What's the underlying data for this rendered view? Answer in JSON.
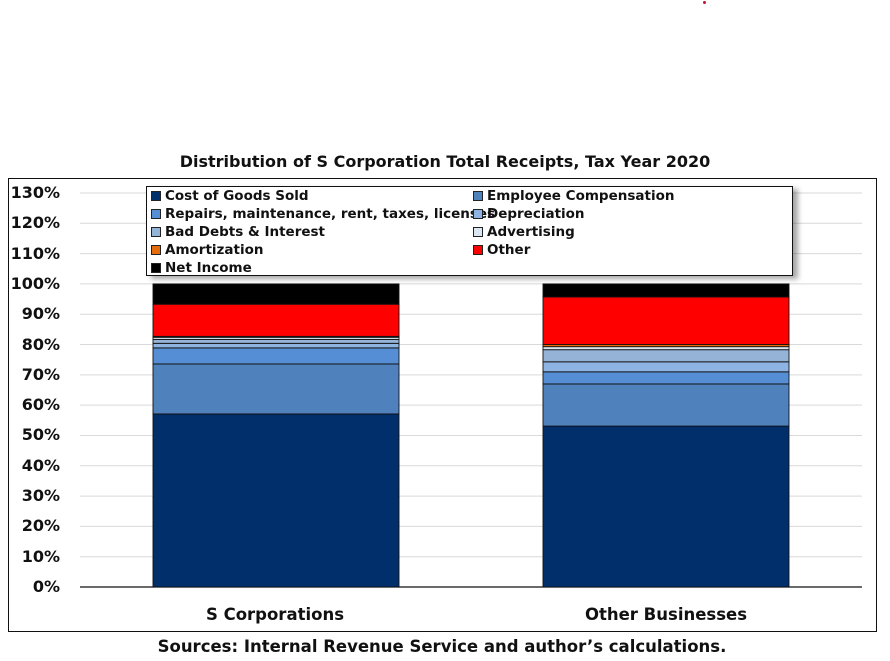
{
  "chart_data": {
    "type": "bar",
    "stacked": true,
    "title": "Distribution of S Corporation Total Receipts, Tax Year 2020",
    "xlabel": "",
    "ylabel": "",
    "ylim": [
      0,
      130
    ],
    "y_ticks": [
      "0%",
      "10%",
      "20%",
      "30%",
      "40%",
      "50%",
      "60%",
      "70%",
      "80%",
      "90%",
      "100%",
      "110%",
      "120%",
      "130%"
    ],
    "y_tick_values": [
      0,
      10,
      20,
      30,
      40,
      50,
      60,
      70,
      80,
      90,
      100,
      110,
      120,
      130
    ],
    "grid": true,
    "legend_position": "top",
    "categories": [
      "S Corporations",
      "Other Businesses"
    ],
    "series": [
      {
        "name": "Cost of Goods Sold",
        "color": "#002f6c",
        "values": [
          57.1,
          53.1
        ]
      },
      {
        "name": "Employee Compensation",
        "color": "#4f81bd",
        "values": [
          16.5,
          13.9
        ]
      },
      {
        "name": "Repairs, maintenance, rent, taxes, licenses",
        "color": "#558ed5",
        "values": [
          5.3,
          4.0
        ]
      },
      {
        "name": "Depreciation",
        "color": "#8db4e2",
        "values": [
          1.5,
          3.3
        ]
      },
      {
        "name": "Bad Debts & Interest",
        "color": "#95b3d7",
        "values": [
          1.3,
          4.0
        ]
      },
      {
        "name": "Advertising",
        "color": "#dce6f2",
        "values": [
          0.7,
          1.0
        ]
      },
      {
        "name": "Amortization",
        "color": "#e46c0a",
        "values": [
          0.3,
          0.7
        ]
      },
      {
        "name": "Other",
        "color": "#ff0000",
        "values": [
          10.6,
          15.7
        ]
      },
      {
        "name": "Net Income",
        "color": "#000000",
        "values": [
          6.7,
          4.3
        ]
      }
    ],
    "legend_order": [
      0,
      1,
      2,
      3,
      4,
      5,
      6,
      7,
      8
    ]
  },
  "source": "Sources: Internal Revenue Service and author’s calculations."
}
